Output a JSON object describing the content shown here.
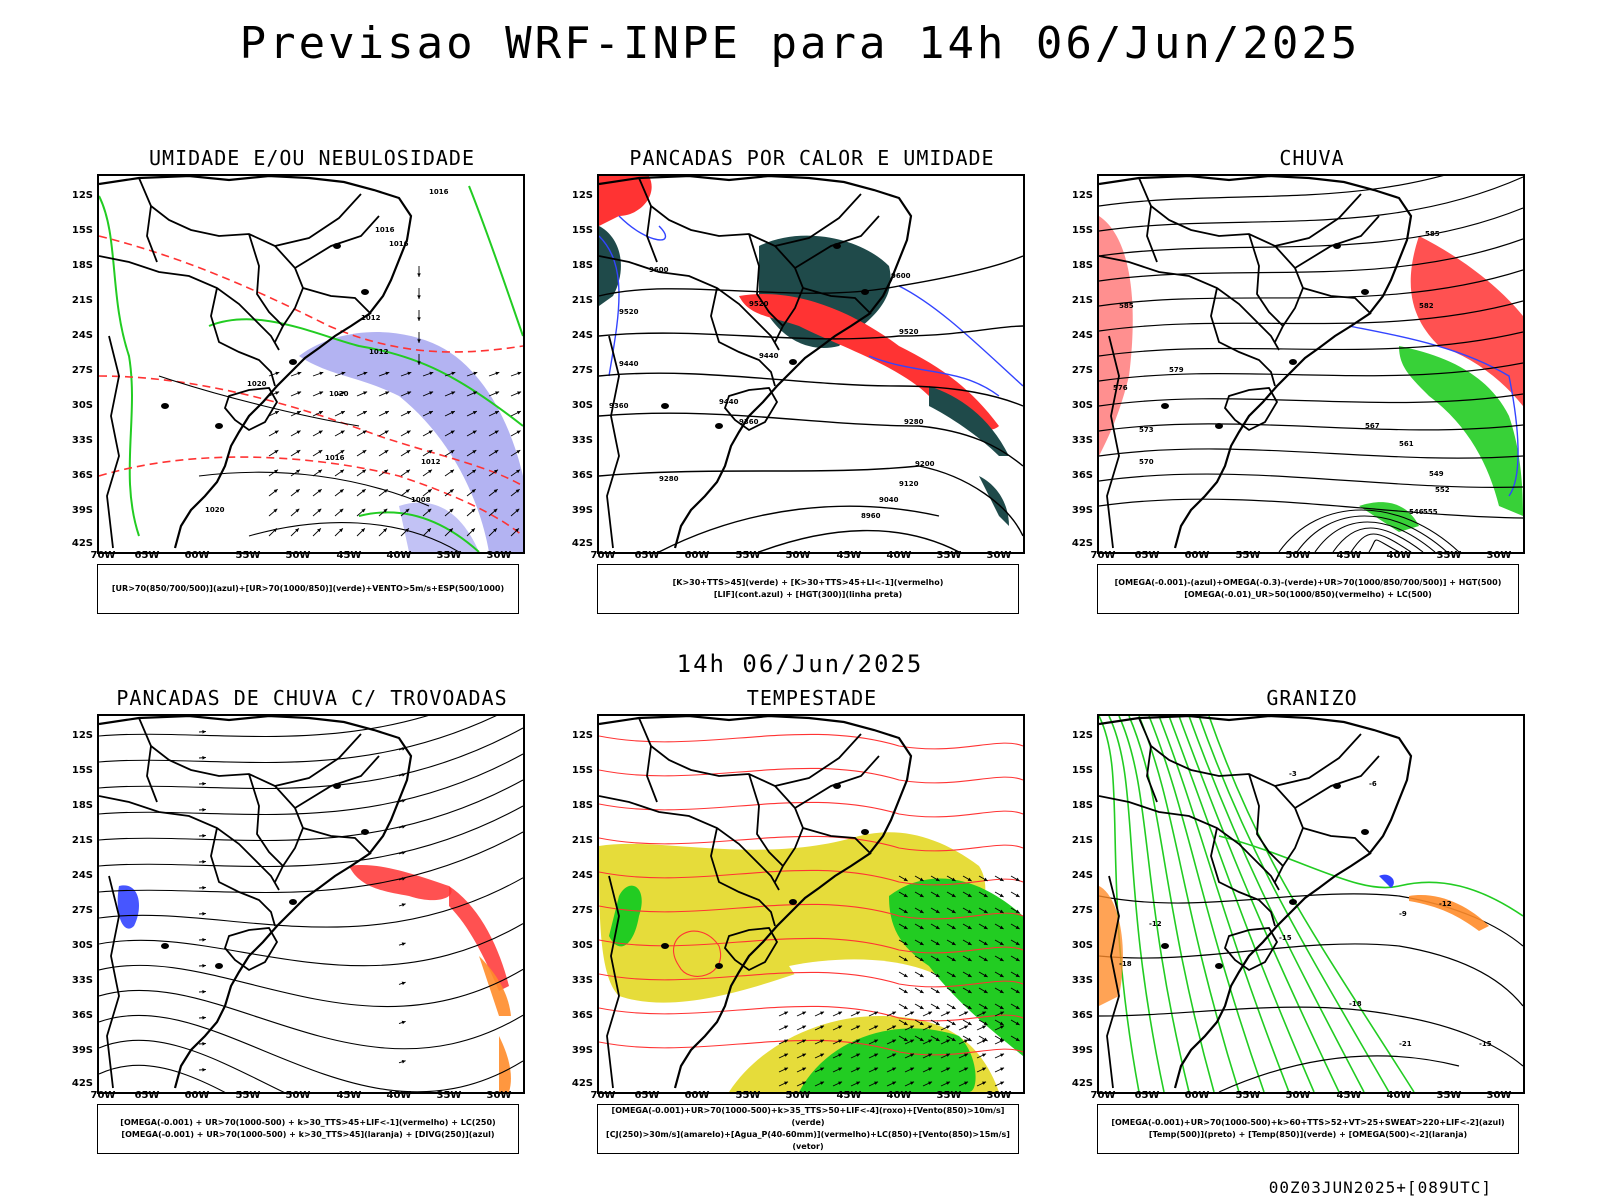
{
  "header": {
    "title": "Previsao WRF-INPE  para 14h 06/Jun/2025",
    "mid_date": "14h 06/Jun/2025",
    "run_stamp": "00Z03JUN2025+[089UTC]"
  },
  "axes": {
    "lat_labels": [
      "12S",
      "15S",
      "18S",
      "21S",
      "24S",
      "27S",
      "30S",
      "33S",
      "36S",
      "39S",
      "42S"
    ],
    "lon_labels": [
      "70W",
      "65W",
      "60W",
      "55W",
      "50W",
      "45W",
      "40W",
      "35W",
      "30W"
    ]
  },
  "panels": [
    {
      "title": "UMIDADE E/OU NEBULOSIDADE",
      "legend": [
        "[UR>70(850/700/500)](azul)+[UR>70(1000/850)](verde)+VENTO>5m/s+ESP(500/1000)"
      ]
    },
    {
      "title": "PANCADAS POR CALOR E UMIDADE",
      "legend": [
        "[K>30+TTS>45](verde) + [K>30+TTS>45+LI<-1](vermelho)",
        "[LIF](cont.azul) + [HGT(300)](linha preta)"
      ]
    },
    {
      "title": "CHUVA",
      "legend": [
        "[OMEGA(-0.001)-(azul)+OMEGA(-0.3)-(verde)+UR>70(1000/850/700/500)] + HGT(500)",
        "[OMEGA(-0.01)_UR>50(1000/850)(vermelho) + LC(500)"
      ]
    },
    {
      "title": "PANCADAS DE CHUVA C/ TROVOADAS",
      "legend": [
        "[OMEGA(-0.001) + UR>70(1000-500) + k>30_TTS>45+LIF<-1](vermelho) + LC(250)",
        "[OMEGA(-0.001) + UR>70(1000-500) + k>30_TTS>45](laranja) + [DIVG(250)](azul)"
      ]
    },
    {
      "title": "TEMPESTADE",
      "legend": [
        "[OMEGA(-0.001)+UR>70(1000-500)+k>35_TTS>50+LIF<-4](roxo)+[Vento(850)>10m/s](verde)",
        "[CJ(250)>30m/s](amarelo)+[Agua_P(40-60mm)](vermelho)+LC(850)+[Vento(850)>15m/s](vetor)"
      ]
    },
    {
      "title": "GRANIZO",
      "legend": [
        "[OMEGA(-0.001)+UR>70(1000-500)+k>60+TTS>52+VT>25+SWEAT>220+LIF<-2](azul)",
        "[Temp(500)](preto) + [Temp(850)](verde) + [OMEGA(500)<-2](laranja)"
      ]
    }
  ],
  "contour_labels": {
    "p1": [
      "1016",
      "1016",
      "1016",
      "1020",
      "1020",
      "1012",
      "1016",
      "1012",
      "1008",
      "1020",
      "1012"
    ],
    "p2": [
      "9600",
      "9600",
      "9520",
      "9520",
      "9520",
      "9440",
      "9440",
      "9440",
      "9360",
      "9360",
      "9280",
      "9280",
      "9200",
      "9120",
      "9040",
      "8960"
    ],
    "p3": [
      "585",
      "585",
      "582",
      "579",
      "576",
      "573",
      "570",
      "567",
      "561",
      "555",
      "552",
      "549",
      "546"
    ],
    "p6": [
      "-3",
      "-6",
      "-9",
      "-12",
      "-12",
      "-15",
      "-18",
      "-21",
      "-15",
      "-18"
    ]
  },
  "colors": {
    "blue": "#3344ff",
    "green": "#22cc22",
    "red": "#ff3333",
    "dark_teal": "#1f4a4a",
    "yellow": "#e6dc3a",
    "orange": "#ff8c2a",
    "lavender": "#9a9aee"
  }
}
